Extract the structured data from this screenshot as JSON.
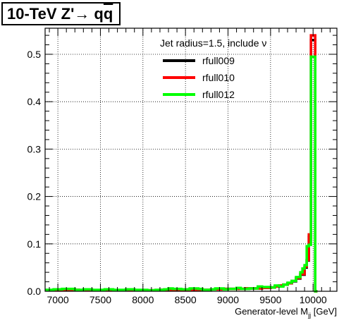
{
  "chart_data": {
    "type": "line",
    "title": {
      "prefix": "10-TeV Z'",
      "arrow": "→",
      "q1": "q",
      "q2": "q"
    },
    "legend_header": "Jet radius=1.5, include ν",
    "legend_position": "top-right",
    "xlabel_main": "Generator-level M",
    "xlabel_sub": "jj",
    "xlabel_unit": " [GeV]",
    "xlim": [
      6850,
      10280
    ],
    "ylim": [
      0,
      0.555
    ],
    "xticks": [
      7000,
      7500,
      8000,
      8500,
      9000,
      9500,
      10000
    ],
    "xtick_labels": [
      "7000",
      "7500",
      "8000",
      "8500",
      "9000",
      "9500",
      "10000"
    ],
    "yticks": [
      0,
      0.1,
      0.2,
      0.3,
      0.4,
      0.5
    ],
    "ytick_labels": [
      "0.0",
      "0.1",
      "0.2",
      "0.3",
      "0.4",
      "0.5"
    ],
    "grid": true,
    "step": true,
    "series": [
      {
        "name": "rfull009",
        "color": "#000000",
        "points": [
          [
            6850,
            0.002
          ],
          [
            7000,
            0.003
          ],
          [
            7250,
            0.002
          ],
          [
            7500,
            0.002
          ],
          [
            7750,
            0.002
          ],
          [
            8000,
            0.002
          ],
          [
            8200,
            0.003
          ],
          [
            8400,
            0.002
          ],
          [
            8600,
            0.003
          ],
          [
            8800,
            0.004
          ],
          [
            8950,
            0.005
          ],
          [
            9100,
            0.005
          ],
          [
            9200,
            0.006
          ],
          [
            9300,
            0.006
          ],
          [
            9400,
            0.007
          ],
          [
            9500,
            0.008
          ],
          [
            9550,
            0.01
          ],
          [
            9600,
            0.012
          ],
          [
            9650,
            0.014
          ],
          [
            9700,
            0.017
          ],
          [
            9750,
            0.021
          ],
          [
            9800,
            0.027
          ],
          [
            9850,
            0.035
          ],
          [
            9900,
            0.05
          ],
          [
            9925,
            0.065
          ],
          [
            9950,
            0.115
          ],
          [
            9975,
            0.53
          ],
          [
            10000,
            0.53
          ],
          [
            10025,
            0.0
          ]
        ]
      },
      {
        "name": "rfull010",
        "color": "#ff0000",
        "points": [
          [
            6850,
            0.002
          ],
          [
            7000,
            0.003
          ],
          [
            7250,
            0.002
          ],
          [
            7500,
            0.002
          ],
          [
            7750,
            0.002
          ],
          [
            8000,
            0.002
          ],
          [
            8200,
            0.003
          ],
          [
            8400,
            0.002
          ],
          [
            8600,
            0.003
          ],
          [
            8800,
            0.004
          ],
          [
            8950,
            0.005
          ],
          [
            9100,
            0.005
          ],
          [
            9200,
            0.006
          ],
          [
            9300,
            0.006
          ],
          [
            9400,
            0.007
          ],
          [
            9500,
            0.008
          ],
          [
            9550,
            0.01
          ],
          [
            9600,
            0.012
          ],
          [
            9650,
            0.014
          ],
          [
            9700,
            0.017
          ],
          [
            9750,
            0.022
          ],
          [
            9800,
            0.028
          ],
          [
            9850,
            0.036
          ],
          [
            9900,
            0.052
          ],
          [
            9925,
            0.066
          ],
          [
            9950,
            0.12
          ],
          [
            9975,
            0.54
          ],
          [
            10000,
            0.54
          ],
          [
            10025,
            0.0
          ]
        ]
      },
      {
        "name": "rfull012",
        "color": "#00ff00",
        "points": [
          [
            6850,
            0.003
          ],
          [
            6950,
            0.004
          ],
          [
            7050,
            0.005
          ],
          [
            7200,
            0.003
          ],
          [
            7300,
            0.004
          ],
          [
            7400,
            0.003
          ],
          [
            7550,
            0.004
          ],
          [
            7650,
            0.003
          ],
          [
            7800,
            0.004
          ],
          [
            7900,
            0.003
          ],
          [
            8050,
            0.002
          ],
          [
            8150,
            0.003
          ],
          [
            8250,
            0.004
          ],
          [
            8300,
            0.006
          ],
          [
            8350,
            0.005
          ],
          [
            8450,
            0.004
          ],
          [
            8550,
            0.006
          ],
          [
            8650,
            0.005
          ],
          [
            8700,
            0.003
          ],
          [
            8800,
            0.004
          ],
          [
            8850,
            0.006
          ],
          [
            8950,
            0.004
          ],
          [
            9000,
            0.005
          ],
          [
            9100,
            0.007
          ],
          [
            9150,
            0.005
          ],
          [
            9250,
            0.006
          ],
          [
            9350,
            0.01
          ],
          [
            9400,
            0.009
          ],
          [
            9500,
            0.008
          ],
          [
            9550,
            0.012
          ],
          [
            9600,
            0.01
          ],
          [
            9650,
            0.014
          ],
          [
            9700,
            0.018
          ],
          [
            9750,
            0.022
          ],
          [
            9800,
            0.03
          ],
          [
            9850,
            0.04
          ],
          [
            9875,
            0.048
          ],
          [
            9900,
            0.055
          ],
          [
            9925,
            0.095
          ],
          [
            9950,
            0.098
          ],
          [
            9975,
            0.495
          ],
          [
            10000,
            0.495
          ],
          [
            10025,
            0.0
          ]
        ]
      }
    ]
  }
}
